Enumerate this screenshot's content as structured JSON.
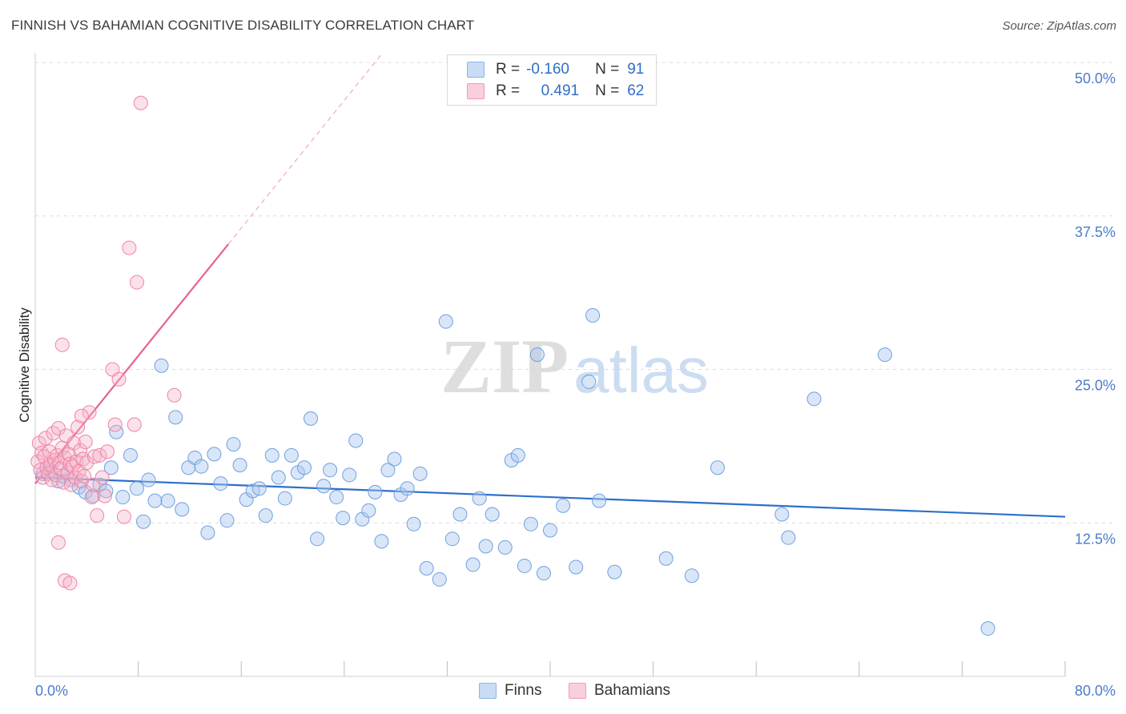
{
  "header": {
    "title": "FINNISH VS BAHAMIAN COGNITIVE DISABILITY CORRELATION CHART",
    "source": "Source: ZipAtlas.com"
  },
  "legend": {
    "items": [
      {
        "swatch_color": "#aac8f0",
        "r_label": "R =",
        "r_value": "-0.160",
        "n_label": "N =",
        "n_value": "91"
      },
      {
        "swatch_color": "#f5b3c8",
        "r_label": "R =",
        "r_value": "0.491",
        "n_label": "N =",
        "n_value": "62"
      }
    ]
  },
  "bottom_legend": {
    "finns": "Finns",
    "bahamians": "Bahamians"
  },
  "watermark": {
    "zip": "ZIP",
    "atlas": "atlas"
  },
  "chart_data": {
    "type": "scatter",
    "ylabel": "Cognitive Disability",
    "x_tick_labels": [
      "0.0%",
      "80.0%"
    ],
    "y_tick_labels": [
      "12.5%",
      "25.0%",
      "37.5%",
      "50.0%"
    ],
    "xlim": [
      0,
      80
    ],
    "ylim": [
      0,
      50
    ],
    "grid": true,
    "colors": {
      "finns": "#6fa0e0",
      "finns_line": "#2d6fcc",
      "bahamians": "#ef84a6",
      "bahamians_line": "#e8628e",
      "tick": "#4a7cc9"
    },
    "series": [
      {
        "name": "Finns",
        "trend": {
          "x0": 0,
          "y0": 16.2,
          "x1": 80,
          "y1": 13.0
        },
        "points": [
          [
            0.6,
            16.5
          ],
          [
            1.2,
            16.8
          ],
          [
            1.8,
            15.9
          ],
          [
            2.2,
            16.3
          ],
          [
            2.8,
            16.0
          ],
          [
            3.4,
            15.4
          ],
          [
            3.9,
            15.0
          ],
          [
            4.5,
            14.7
          ],
          [
            5.0,
            15.6
          ],
          [
            5.5,
            15.1
          ],
          [
            5.9,
            17.0
          ],
          [
            6.3,
            19.9
          ],
          [
            6.8,
            14.6
          ],
          [
            7.4,
            18.0
          ],
          [
            7.9,
            15.3
          ],
          [
            8.4,
            12.6
          ],
          [
            8.8,
            16.0
          ],
          [
            9.3,
            14.3
          ],
          [
            9.8,
            25.3
          ],
          [
            10.3,
            14.3
          ],
          [
            10.9,
            21.1
          ],
          [
            11.4,
            13.6
          ],
          [
            11.9,
            17.0
          ],
          [
            12.4,
            17.8
          ],
          [
            12.9,
            17.1
          ],
          [
            13.4,
            11.7
          ],
          [
            13.9,
            18.1
          ],
          [
            14.4,
            15.7
          ],
          [
            14.9,
            12.7
          ],
          [
            15.4,
            18.9
          ],
          [
            15.9,
            17.2
          ],
          [
            16.4,
            14.4
          ],
          [
            16.9,
            15.1
          ],
          [
            17.4,
            15.3
          ],
          [
            17.9,
            13.1
          ],
          [
            18.4,
            18.0
          ],
          [
            18.9,
            16.2
          ],
          [
            19.4,
            14.5
          ],
          [
            19.9,
            18.0
          ],
          [
            20.4,
            16.6
          ],
          [
            20.9,
            17.0
          ],
          [
            21.4,
            21.0
          ],
          [
            21.9,
            11.2
          ],
          [
            22.4,
            15.5
          ],
          [
            22.9,
            16.8
          ],
          [
            23.4,
            14.6
          ],
          [
            23.9,
            12.9
          ],
          [
            24.4,
            16.4
          ],
          [
            24.9,
            19.2
          ],
          [
            25.4,
            12.8
          ],
          [
            25.9,
            13.5
          ],
          [
            26.4,
            15.0
          ],
          [
            26.9,
            11.0
          ],
          [
            27.4,
            16.8
          ],
          [
            27.9,
            17.7
          ],
          [
            28.4,
            14.8
          ],
          [
            28.9,
            15.3
          ],
          [
            29.4,
            12.4
          ],
          [
            29.9,
            16.5
          ],
          [
            30.4,
            8.8
          ],
          [
            31.4,
            7.9
          ],
          [
            31.9,
            28.9
          ],
          [
            32.4,
            11.2
          ],
          [
            33.0,
            13.2
          ],
          [
            34.0,
            9.1
          ],
          [
            34.5,
            14.5
          ],
          [
            35.0,
            10.6
          ],
          [
            35.5,
            13.2
          ],
          [
            36.5,
            10.5
          ],
          [
            37.0,
            17.6
          ],
          [
            37.5,
            18.0
          ],
          [
            38.0,
            9.0
          ],
          [
            38.5,
            12.4
          ],
          [
            39.0,
            26.2
          ],
          [
            39.5,
            8.4
          ],
          [
            40.0,
            11.9
          ],
          [
            41.0,
            13.9
          ],
          [
            42.0,
            8.9
          ],
          [
            43.0,
            24.0
          ],
          [
            43.3,
            29.4
          ],
          [
            43.8,
            14.3
          ],
          [
            45.0,
            8.5
          ],
          [
            49.0,
            9.6
          ],
          [
            51.0,
            8.2
          ],
          [
            53.0,
            17.0
          ],
          [
            58.0,
            13.2
          ],
          [
            58.5,
            11.3
          ],
          [
            60.5,
            22.6
          ],
          [
            66.0,
            26.2
          ],
          [
            74.0,
            3.9
          ]
        ]
      },
      {
        "name": "Bahamians",
        "trend": {
          "x0": 0,
          "y0": 15.7,
          "x1": 15.0,
          "y1": 35.2,
          "x_dash_end": 27.0
        },
        "points": [
          [
            0.2,
            17.5
          ],
          [
            0.3,
            19.0
          ],
          [
            0.4,
            16.8
          ],
          [
            0.5,
            18.2
          ],
          [
            0.6,
            16.2
          ],
          [
            0.7,
            17.9
          ],
          [
            0.8,
            19.4
          ],
          [
            0.9,
            17.0
          ],
          [
            1.0,
            16.5
          ],
          [
            1.1,
            18.3
          ],
          [
            1.2,
            17.2
          ],
          [
            1.3,
            16.0
          ],
          [
            1.4,
            19.8
          ],
          [
            1.5,
            17.6
          ],
          [
            1.6,
            16.4
          ],
          [
            1.7,
            18.0
          ],
          [
            1.8,
            20.2
          ],
          [
            1.9,
            17.4
          ],
          [
            2.0,
            16.9
          ],
          [
            2.1,
            18.6
          ],
          [
            2.2,
            15.8
          ],
          [
            2.3,
            17.8
          ],
          [
            2.4,
            19.6
          ],
          [
            2.5,
            16.6
          ],
          [
            2.6,
            18.1
          ],
          [
            2.7,
            17.3
          ],
          [
            2.8,
            15.6
          ],
          [
            2.9,
            17.1
          ],
          [
            3.0,
            19.0
          ],
          [
            3.1,
            16.2
          ],
          [
            3.2,
            17.5
          ],
          [
            3.3,
            20.3
          ],
          [
            3.4,
            16.7
          ],
          [
            3.5,
            18.4
          ],
          [
            3.6,
            15.9
          ],
          [
            3.7,
            17.7
          ],
          [
            3.8,
            16.3
          ],
          [
            3.9,
            19.1
          ],
          [
            4.0,
            17.4
          ],
          [
            4.2,
            21.5
          ],
          [
            4.4,
            14.6
          ],
          [
            4.6,
            17.9
          ],
          [
            4.8,
            13.1
          ],
          [
            5.0,
            18.0
          ],
          [
            5.2,
            16.2
          ],
          [
            5.4,
            14.7
          ],
          [
            5.6,
            18.3
          ],
          [
            6.0,
            25.0
          ],
          [
            6.2,
            20.5
          ],
          [
            6.5,
            24.2
          ],
          [
            6.9,
            13.0
          ],
          [
            7.3,
            34.9
          ],
          [
            7.7,
            20.5
          ],
          [
            7.9,
            32.1
          ],
          [
            8.2,
            46.7
          ],
          [
            10.8,
            22.9
          ],
          [
            1.8,
            10.9
          ],
          [
            2.1,
            27.0
          ],
          [
            2.3,
            7.8
          ],
          [
            2.7,
            7.6
          ],
          [
            3.6,
            21.2
          ],
          [
            4.5,
            15.6
          ]
        ]
      }
    ]
  }
}
